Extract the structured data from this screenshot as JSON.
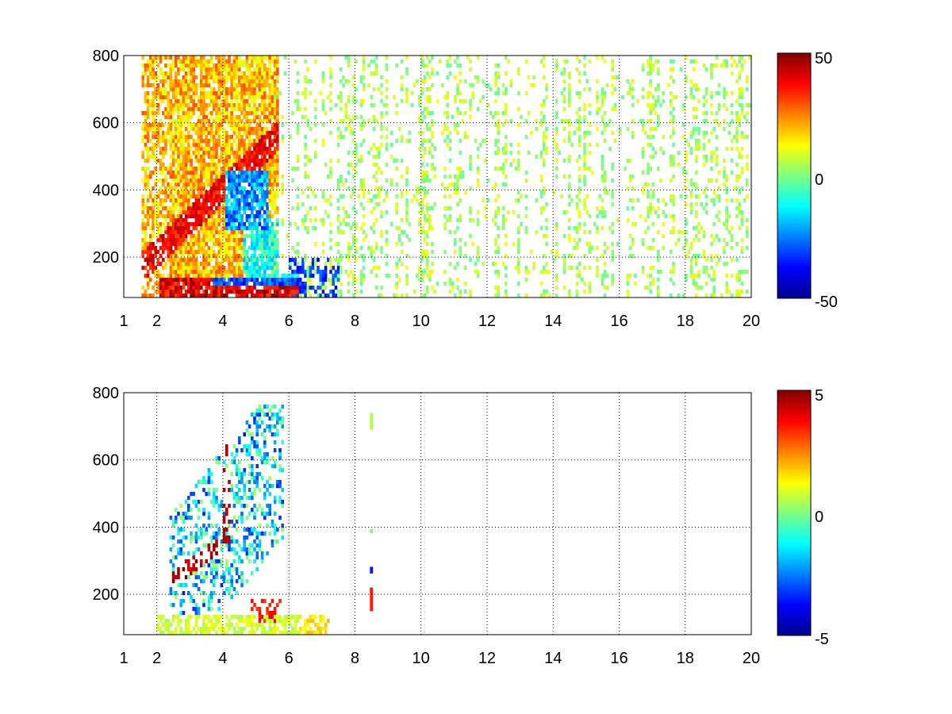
{
  "chart_data": [
    {
      "type": "heatmap",
      "xlim": [
        1,
        20
      ],
      "ylim": [
        80,
        800
      ],
      "xticks": [
        1,
        2,
        4,
        6,
        8,
        10,
        12,
        14,
        16,
        18,
        20
      ],
      "xtick_labels": [
        "1",
        "2",
        "4",
        "6",
        "8",
        "10",
        "12",
        "14",
        "16",
        "18",
        "20"
      ],
      "yticks": [
        200,
        400,
        600,
        800
      ],
      "ytick_labels": [
        "200",
        "400",
        "600",
        "800"
      ],
      "grid": true,
      "colormap": "jet",
      "colorbar": {
        "min": -50,
        "max": 50,
        "ticks": [
          -50,
          0,
          50
        ],
        "tick_labels": [
          "-50",
          "0",
          "50"
        ]
      },
      "features": [
        {
          "x_range": [
            2.0,
            6.5
          ],
          "y_range": [
            90,
            130
          ],
          "value": 45,
          "note": "band near bottom"
        },
        {
          "x_range": [
            2.5,
            4.2
          ],
          "y_range": [
            250,
            450
          ],
          "value": 40,
          "note": "diagonal ridge"
        },
        {
          "x_range": [
            3.5,
            6.0
          ],
          "y_range": [
            100,
            200
          ],
          "value": -40
        },
        {
          "x_range": [
            4.2,
            5.5
          ],
          "y_range": [
            300,
            450
          ],
          "value": -30
        },
        {
          "x_range": [
            2.0,
            5.0
          ],
          "y_range": [
            450,
            800
          ],
          "value": 15
        },
        {
          "x_range": [
            6.0,
            20.0
          ],
          "y_range": [
            80,
            800
          ],
          "value": 0,
          "note": "sparse scattered low values"
        }
      ]
    },
    {
      "type": "heatmap",
      "xlim": [
        1,
        20
      ],
      "ylim": [
        80,
        800
      ],
      "xticks": [
        1,
        2,
        4,
        6,
        8,
        10,
        12,
        14,
        16,
        18,
        20
      ],
      "xtick_labels": [
        "1",
        "2",
        "4",
        "6",
        "8",
        "10",
        "12",
        "14",
        "16",
        "18",
        "20"
      ],
      "yticks": [
        200,
        400,
        600,
        800
      ],
      "ytick_labels": [
        "200",
        "400",
        "600",
        "800"
      ],
      "grid": true,
      "colormap": "jet",
      "colorbar": {
        "min": -5,
        "max": 5,
        "ticks": [
          -5,
          0,
          5
        ],
        "tick_labels": [
          "-5",
          "0",
          "5"
        ]
      },
      "features": [
        {
          "x_range": [
            2.8,
            3.6
          ],
          "y_range": [
            260,
            300
          ],
          "value": 5,
          "note": "dark red arc"
        },
        {
          "x_range": [
            3.9,
            4.2
          ],
          "y_range": [
            400,
            700
          ],
          "value": 5
        },
        {
          "x_range": [
            3.0,
            4.8
          ],
          "y_range": [
            150,
            500
          ],
          "value": -3
        },
        {
          "x_range": [
            2.0,
            7.0
          ],
          "y_range": [
            85,
            140
          ],
          "value": 0.5,
          "note": "greenish band"
        },
        {
          "x_range": [
            4.8,
            5.8
          ],
          "y_range": [
            120,
            180
          ],
          "value": 3.5
        },
        {
          "x_range": [
            8.45,
            8.55
          ],
          "y_range": [
            150,
            220
          ],
          "value": 3.5
        },
        {
          "x_range": [
            8.45,
            8.55
          ],
          "y_range": [
            260,
            280
          ],
          "value": -3.5
        },
        {
          "x_range": [
            8.45,
            8.55
          ],
          "y_range": [
            690,
            740
          ],
          "value": 0.5
        }
      ]
    }
  ]
}
